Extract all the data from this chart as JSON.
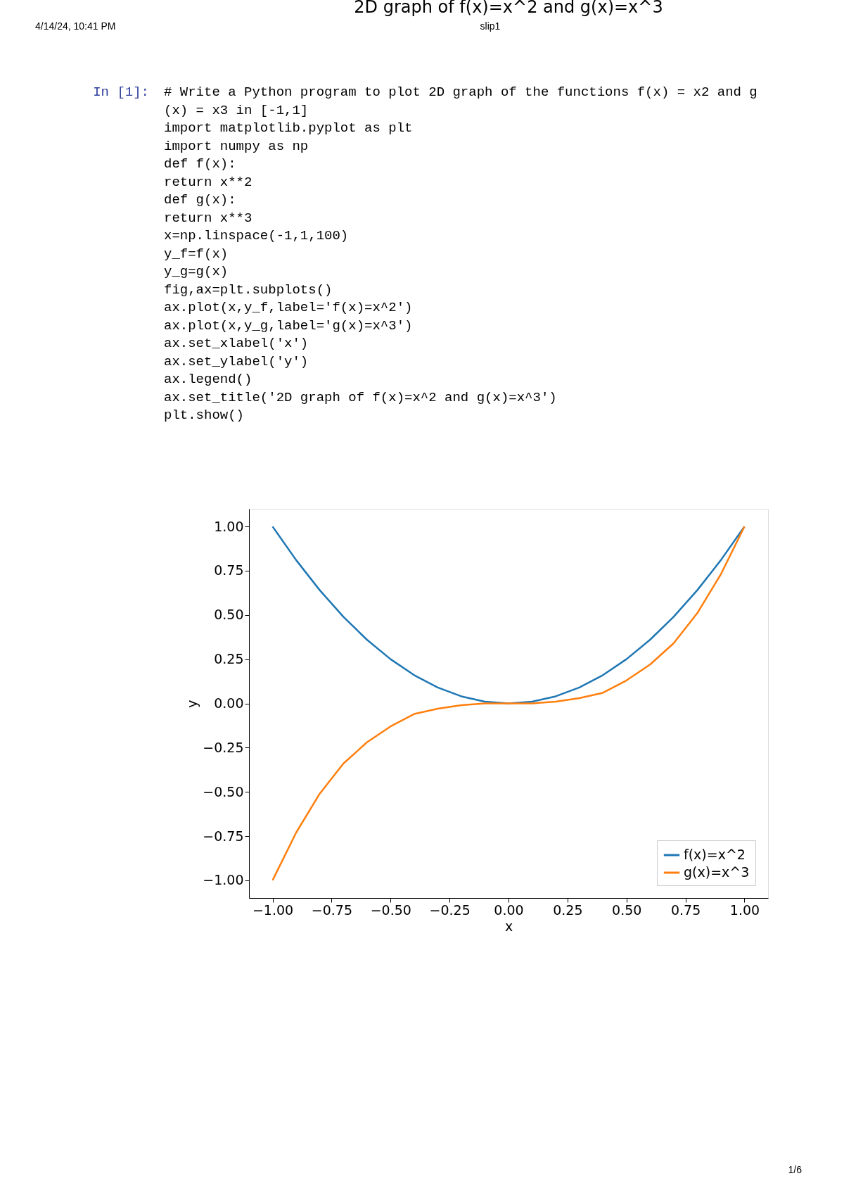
{
  "chart_data": {
    "type": "line",
    "title": "2D graph of f(x)=x^2 and g(x)=x^3",
    "xlabel": "x",
    "ylabel": "y",
    "x": [
      -1.0,
      -0.9,
      -0.8,
      -0.7,
      -0.6,
      -0.5,
      -0.4,
      -0.3,
      -0.2,
      -0.1,
      0.0,
      0.1,
      0.2,
      0.3,
      0.4,
      0.5,
      0.6,
      0.7,
      0.8,
      0.9,
      1.0
    ],
    "series": [
      {
        "name": "f(x)=x^2",
        "color": "#1f77b4",
        "values": [
          1.0,
          0.81,
          0.64,
          0.49,
          0.36,
          0.25,
          0.16,
          0.09,
          0.04,
          0.01,
          0.0,
          0.01,
          0.04,
          0.09,
          0.16,
          0.25,
          0.36,
          0.49,
          0.64,
          0.81,
          1.0
        ]
      },
      {
        "name": "g(x)=x^3",
        "color": "#ff7f0e",
        "values": [
          -1.0,
          -0.73,
          -0.51,
          -0.34,
          -0.22,
          -0.13,
          -0.06,
          -0.03,
          -0.01,
          0.0,
          0.0,
          0.0,
          0.01,
          0.03,
          0.06,
          0.13,
          0.22,
          0.34,
          0.51,
          0.73,
          1.0
        ]
      }
    ],
    "xlim": [
      -1.1,
      1.1
    ],
    "ylim": [
      -1.1,
      1.1
    ],
    "xticks": [
      {
        "value": -1,
        "label": "−1.00"
      },
      {
        "value": -0.75,
        "label": "−0.75"
      },
      {
        "value": -0.5,
        "label": "−0.50"
      },
      {
        "value": -0.25,
        "label": "−0.25"
      },
      {
        "value": 0,
        "label": "0.00"
      },
      {
        "value": 0.25,
        "label": "0.25"
      },
      {
        "value": 0.5,
        "label": "0.50"
      },
      {
        "value": 0.75,
        "label": "0.75"
      },
      {
        "value": 1,
        "label": "1.00"
      }
    ],
    "yticks": [
      {
        "value": -1,
        "label": "−1.00"
      },
      {
        "value": -0.75,
        "label": "−0.75"
      },
      {
        "value": -0.5,
        "label": "−0.50"
      },
      {
        "value": -0.25,
        "label": "−0.25"
      },
      {
        "value": 0,
        "label": "0.00"
      },
      {
        "value": 0.25,
        "label": "0.25"
      },
      {
        "value": 0.5,
        "label": "0.50"
      },
      {
        "value": 0.75,
        "label": "0.75"
      },
      {
        "value": 1,
        "label": "1.00"
      }
    ],
    "grid": false,
    "legend": "bottom right",
    "marker": "none",
    "line_style": "solid",
    "annotations": [
      "4/14/24, 10:41 PM",
      "slip1",
      "1/6",
      "In [1]:",
      "# Write a Python program to plot 2D graph of the functions f(x) = x2 and g\n(x) = x3 in [-1,1]\nimport matplotlib.pyplot as plt\nimport numpy as np\n\ndef f(x):\n    return x**2\ndef g(x):\n    return x**3\n\nx=np.linspace(-1,1,100)\ny_f=f(x)\ny_g=g(x)\nfig,ax=plt.subplots()\nax.plot(x,y_f,label='f(x)=x^2')\nax.plot(x,y_g,label='g(x)=x^3')\nax.set_xlabel('x')\nax.set_ylabel('y')\nax.legend()\nax.set_title('2D graph of f(x)=x^2 and g(x)=x^3')\nplt.show()"
    ]
  }
}
